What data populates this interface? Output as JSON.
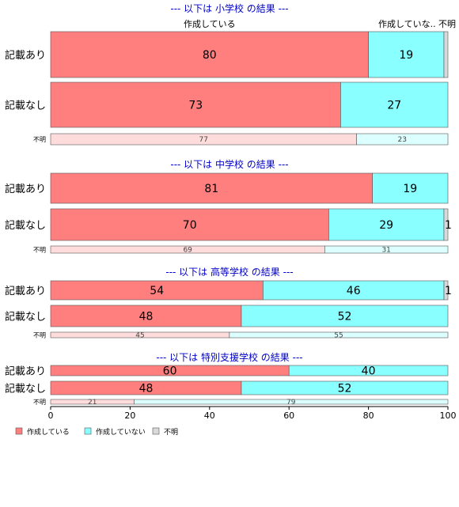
{
  "chart_data": {
    "type": "bar",
    "orientation": "horizontal",
    "stacked": true,
    "xlim": [
      0,
      100
    ],
    "x_ticks": [
      "0",
      "20",
      "40",
      "60",
      "80",
      "100"
    ],
    "column_labels": [
      "作成している",
      "作成していな..",
      "不明"
    ],
    "legend": {
      "position": "bottom-left",
      "items": [
        {
          "label": "作成している",
          "color": "#FF7F7F"
        },
        {
          "label": "作成していない",
          "color": "#8AFFFF"
        },
        {
          "label": "不明",
          "color": "#D9D9D9"
        }
      ]
    },
    "series_colors": {
      "main": [
        "#FF7F7F",
        "#8AFFFF",
        "#D9D9D9"
      ],
      "light": [
        "#FFDCDC",
        "#DCFFFF",
        "#F0F0F0"
      ]
    },
    "panels": [
      {
        "title": "--- 以下は 小学校 の結果 ---",
        "rows": [
          {
            "label": "記載あり",
            "values": [
              80,
              19,
              1
            ],
            "value_labels": [
              "80",
              "19",
              ""
            ]
          },
          {
            "label": "記載なし",
            "values": [
              73,
              27,
              0
            ],
            "value_labels": [
              "73",
              "27",
              ""
            ]
          },
          {
            "label": "不明",
            "values": [
              77,
              23,
              0
            ],
            "value_labels": [
              "77",
              "23",
              ""
            ],
            "minor": true
          }
        ]
      },
      {
        "title": "--- 以下は 中学校 の結果 ---",
        "rows": [
          {
            "label": "記載あり",
            "values": [
              81,
              19,
              0
            ],
            "value_labels": [
              "81",
              "19",
              ""
            ]
          },
          {
            "label": "記載なし",
            "values": [
              70,
              29,
              1
            ],
            "value_labels": [
              "70",
              "29",
              "1"
            ]
          },
          {
            "label": "不明",
            "values": [
              69,
              31,
              0
            ],
            "value_labels": [
              "69",
              "31",
              ""
            ],
            "minor": true
          }
        ]
      },
      {
        "title": "--- 以下は 高等学校 の結果 ---",
        "rows": [
          {
            "label": "記載あり",
            "values": [
              54,
              46,
              1
            ],
            "value_labels": [
              "54",
              "46",
              "1"
            ]
          },
          {
            "label": "記載なし",
            "values": [
              48,
              52,
              0
            ],
            "value_labels": [
              "48",
              "52",
              ""
            ]
          },
          {
            "label": "不明",
            "values": [
              45,
              55,
              0
            ],
            "value_labels": [
              "45",
              "55",
              ""
            ],
            "minor": true
          }
        ]
      },
      {
        "title": "--- 以下は 特別支援学校 の結果 ---",
        "rows": [
          {
            "label": "記載あり",
            "values": [
              60,
              40,
              0
            ],
            "value_labels": [
              "60",
              "40",
              ""
            ]
          },
          {
            "label": "記載なし",
            "values": [
              48,
              52,
              0
            ],
            "value_labels": [
              "48",
              "52",
              ""
            ]
          },
          {
            "label": "不明",
            "values": [
              21,
              79,
              0
            ],
            "value_labels": [
              "21",
              "79",
              ""
            ],
            "minor": true
          }
        ]
      }
    ]
  }
}
